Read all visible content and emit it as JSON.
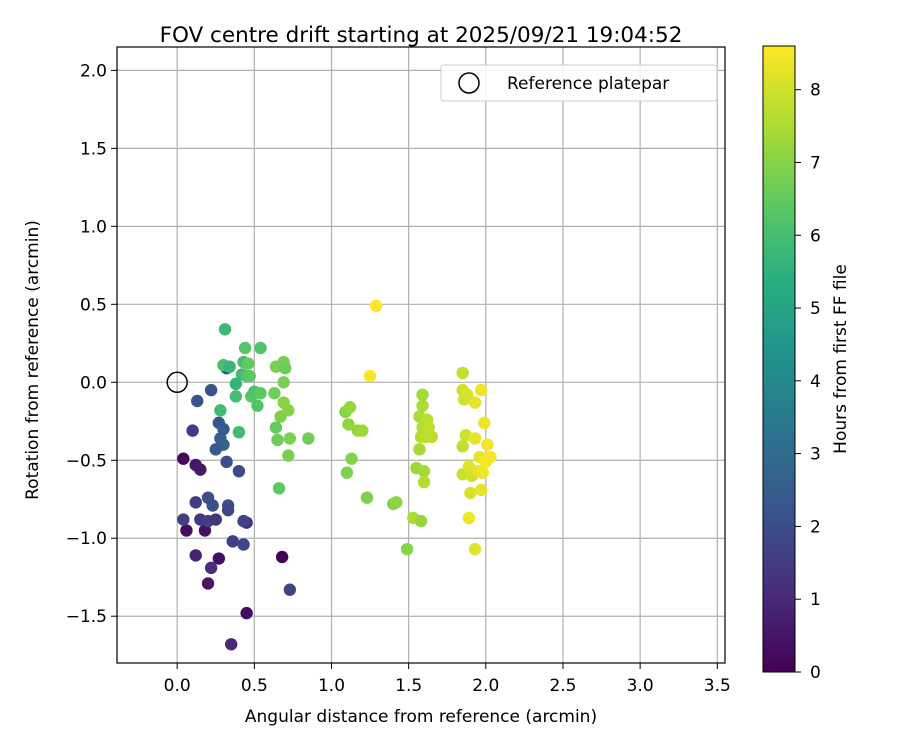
{
  "chart_data": {
    "type": "scatter",
    "title": "FOV centre drift starting at 2025/09/21 19:04:52",
    "xlabel": "Angular distance from reference (arcmin)",
    "ylabel": "Rotation from reference (arcmin)",
    "xlim": [
      -0.39,
      3.55
    ],
    "ylim": [
      -1.8,
      2.15
    ],
    "xticks": [
      0.0,
      0.5,
      1.0,
      1.5,
      2.0,
      2.5,
      3.0,
      3.5
    ],
    "xtick_labels": [
      "0.0",
      "0.5",
      "1.0",
      "1.5",
      "2.0",
      "2.5",
      "3.0",
      "3.5"
    ],
    "yticks": [
      -1.5,
      -1.0,
      -0.5,
      0.0,
      0.5,
      1.0,
      1.5,
      2.0
    ],
    "ytick_labels": [
      "−1.5",
      "−1.0",
      "−0.5",
      "0.0",
      "0.5",
      "1.0",
      "1.5",
      "2.0"
    ],
    "grid": true,
    "legend": {
      "position": "upper right",
      "entries": [
        "Reference platepar"
      ]
    },
    "reference_point": {
      "x": 0.0,
      "y": 0.0
    },
    "colorbar": {
      "label": "Hours from first FF file",
      "min": 0,
      "max": 8.6,
      "ticks": [
        0,
        1,
        2,
        3,
        4,
        5,
        6,
        7,
        8
      ],
      "tick_labels": [
        "0",
        "1",
        "2",
        "3",
        "4",
        "5",
        "6",
        "7",
        "8"
      ],
      "colormap": "viridis"
    },
    "points": [
      [
        0.04,
        -0.49,
        0.2
      ],
      [
        0.12,
        -0.53,
        0.5
      ],
      [
        0.15,
        -0.56,
        0.6
      ],
      [
        0.06,
        -0.95,
        0.3
      ],
      [
        0.18,
        -0.95,
        0.4
      ],
      [
        0.12,
        -1.11,
        0.8
      ],
      [
        0.27,
        -1.13,
        0.3
      ],
      [
        0.2,
        -1.29,
        0.5
      ],
      [
        0.22,
        -1.19,
        1.1
      ],
      [
        0.45,
        -1.48,
        0.3
      ],
      [
        0.35,
        -1.68,
        1.0
      ],
      [
        0.68,
        -1.12,
        0.1
      ],
      [
        0.73,
        -1.33,
        1.7
      ],
      [
        0.45,
        -0.9,
        1.1
      ],
      [
        0.12,
        -0.77,
        1.5
      ],
      [
        0.15,
        -0.88,
        1.4
      ],
      [
        0.2,
        -0.89,
        1.6
      ],
      [
        0.25,
        -0.88,
        1.3
      ],
      [
        0.23,
        -0.79,
        2.1
      ],
      [
        0.2,
        -0.74,
        2.0
      ],
      [
        0.33,
        -0.79,
        2.0
      ],
      [
        0.33,
        -0.82,
        1.8
      ],
      [
        0.43,
        -0.89,
        1.7
      ],
      [
        0.43,
        -1.04,
        1.8
      ],
      [
        0.36,
        -1.02,
        1.6
      ],
      [
        0.04,
        -0.88,
        1.6
      ],
      [
        0.1,
        -0.31,
        1.5
      ],
      [
        0.13,
        -0.12,
        2.2
      ],
      [
        0.22,
        -0.05,
        2.1
      ],
      [
        0.27,
        -0.26,
        2.3
      ],
      [
        0.28,
        -0.36,
        2.6
      ],
      [
        0.3,
        -0.3,
        2.5
      ],
      [
        0.3,
        -0.4,
        2.8
      ],
      [
        0.25,
        -0.43,
        2.4
      ],
      [
        0.32,
        -0.51,
        2.0
      ],
      [
        0.4,
        -0.57,
        1.9
      ],
      [
        0.32,
        0.09,
        2.4
      ],
      [
        0.28,
        -0.18,
        5.9
      ],
      [
        0.31,
        0.34,
        5.8
      ],
      [
        0.3,
        0.11,
        6.1
      ],
      [
        0.34,
        0.1,
        5.7
      ],
      [
        0.38,
        -0.09,
        6.0
      ],
      [
        0.38,
        -0.01,
        5.6
      ],
      [
        0.4,
        -0.32,
        5.9
      ],
      [
        0.42,
        0.05,
        5.8
      ],
      [
        0.43,
        0.13,
        6.0
      ],
      [
        0.44,
        0.22,
        6.3
      ],
      [
        0.46,
        0.12,
        6.5
      ],
      [
        0.45,
        0.04,
        6.2
      ],
      [
        0.47,
        0.04,
        6.4
      ],
      [
        0.48,
        -0.09,
        6.3
      ],
      [
        0.5,
        -0.06,
        6.1
      ],
      [
        0.52,
        -0.15,
        6.2
      ],
      [
        0.54,
        -0.07,
        6.4
      ],
      [
        0.54,
        0.22,
        6.2
      ],
      [
        0.63,
        -0.07,
        6.7
      ],
      [
        0.64,
        0.1,
        6.8
      ],
      [
        0.64,
        -0.29,
        6.5
      ],
      [
        0.65,
        -0.37,
        6.6
      ],
      [
        0.66,
        -0.68,
        6.4
      ],
      [
        0.67,
        -0.22,
        6.9
      ],
      [
        0.69,
        -0.13,
        7.0
      ],
      [
        0.69,
        0.0,
        6.8
      ],
      [
        0.69,
        0.13,
        6.8
      ],
      [
        0.7,
        0.09,
        6.6
      ],
      [
        0.72,
        -0.18,
        7.0
      ],
      [
        0.72,
        -0.47,
        6.8
      ],
      [
        0.73,
        -0.36,
        6.9
      ],
      [
        0.85,
        -0.36,
        6.7
      ],
      [
        1.09,
        -0.19,
        7.0
      ],
      [
        1.1,
        -0.58,
        6.9
      ],
      [
        1.11,
        -0.27,
        7.1
      ],
      [
        1.12,
        -0.16,
        7.2
      ],
      [
        1.13,
        -0.49,
        7.0
      ],
      [
        1.17,
        -0.31,
        7.2
      ],
      [
        1.2,
        -0.31,
        7.3
      ],
      [
        1.23,
        -0.74,
        6.9
      ],
      [
        1.4,
        -0.78,
        7.0
      ],
      [
        1.42,
        -0.77,
        7.1
      ],
      [
        1.49,
        -1.07,
        7.0
      ],
      [
        1.53,
        -0.87,
        7.5
      ],
      [
        1.55,
        -0.55,
        7.3
      ],
      [
        1.57,
        -0.43,
        7.4
      ],
      [
        1.57,
        -0.22,
        7.5
      ],
      [
        1.58,
        -0.89,
        7.2
      ],
      [
        1.58,
        -0.35,
        7.6
      ],
      [
        1.59,
        -0.08,
        7.4
      ],
      [
        1.59,
        -0.15,
        7.5
      ],
      [
        1.59,
        -0.29,
        7.6
      ],
      [
        1.6,
        -0.57,
        7.4
      ],
      [
        1.6,
        -0.64,
        7.6
      ],
      [
        1.61,
        -0.35,
        7.7
      ],
      [
        1.62,
        -0.24,
        7.7
      ],
      [
        1.63,
        -0.29,
        7.8
      ],
      [
        1.65,
        -0.35,
        7.7
      ],
      [
        1.85,
        0.06,
        7.8
      ],
      [
        1.85,
        -0.05,
        7.9
      ],
      [
        1.86,
        -0.11,
        8.0
      ],
      [
        1.85,
        -0.41,
        7.8
      ],
      [
        1.85,
        -0.59,
        7.9
      ],
      [
        1.87,
        -0.34,
        8.0
      ],
      [
        1.88,
        -0.08,
        8.1
      ],
      [
        1.89,
        -0.54,
        8.2
      ],
      [
        1.89,
        -0.87,
        8.4
      ],
      [
        1.9,
        -0.71,
        8.1
      ],
      [
        1.91,
        -0.6,
        8.0
      ],
      [
        1.93,
        -1.07,
        8.2
      ],
      [
        1.93,
        -0.36,
        8.3
      ],
      [
        1.93,
        -0.13,
        8.3
      ],
      [
        1.95,
        -0.57,
        8.3
      ],
      [
        1.96,
        -0.48,
        8.3
      ],
      [
        1.97,
        -0.69,
        8.3
      ],
      [
        1.97,
        -0.05,
        8.4
      ],
      [
        1.98,
        -0.58,
        8.4
      ],
      [
        1.99,
        -0.26,
        8.4
      ],
      [
        2.0,
        -0.51,
        8.5
      ],
      [
        2.01,
        -0.4,
        8.5
      ],
      [
        2.03,
        -0.48,
        8.5
      ],
      [
        1.25,
        0.04,
        8.5
      ],
      [
        1.29,
        0.49,
        8.6
      ]
    ]
  }
}
